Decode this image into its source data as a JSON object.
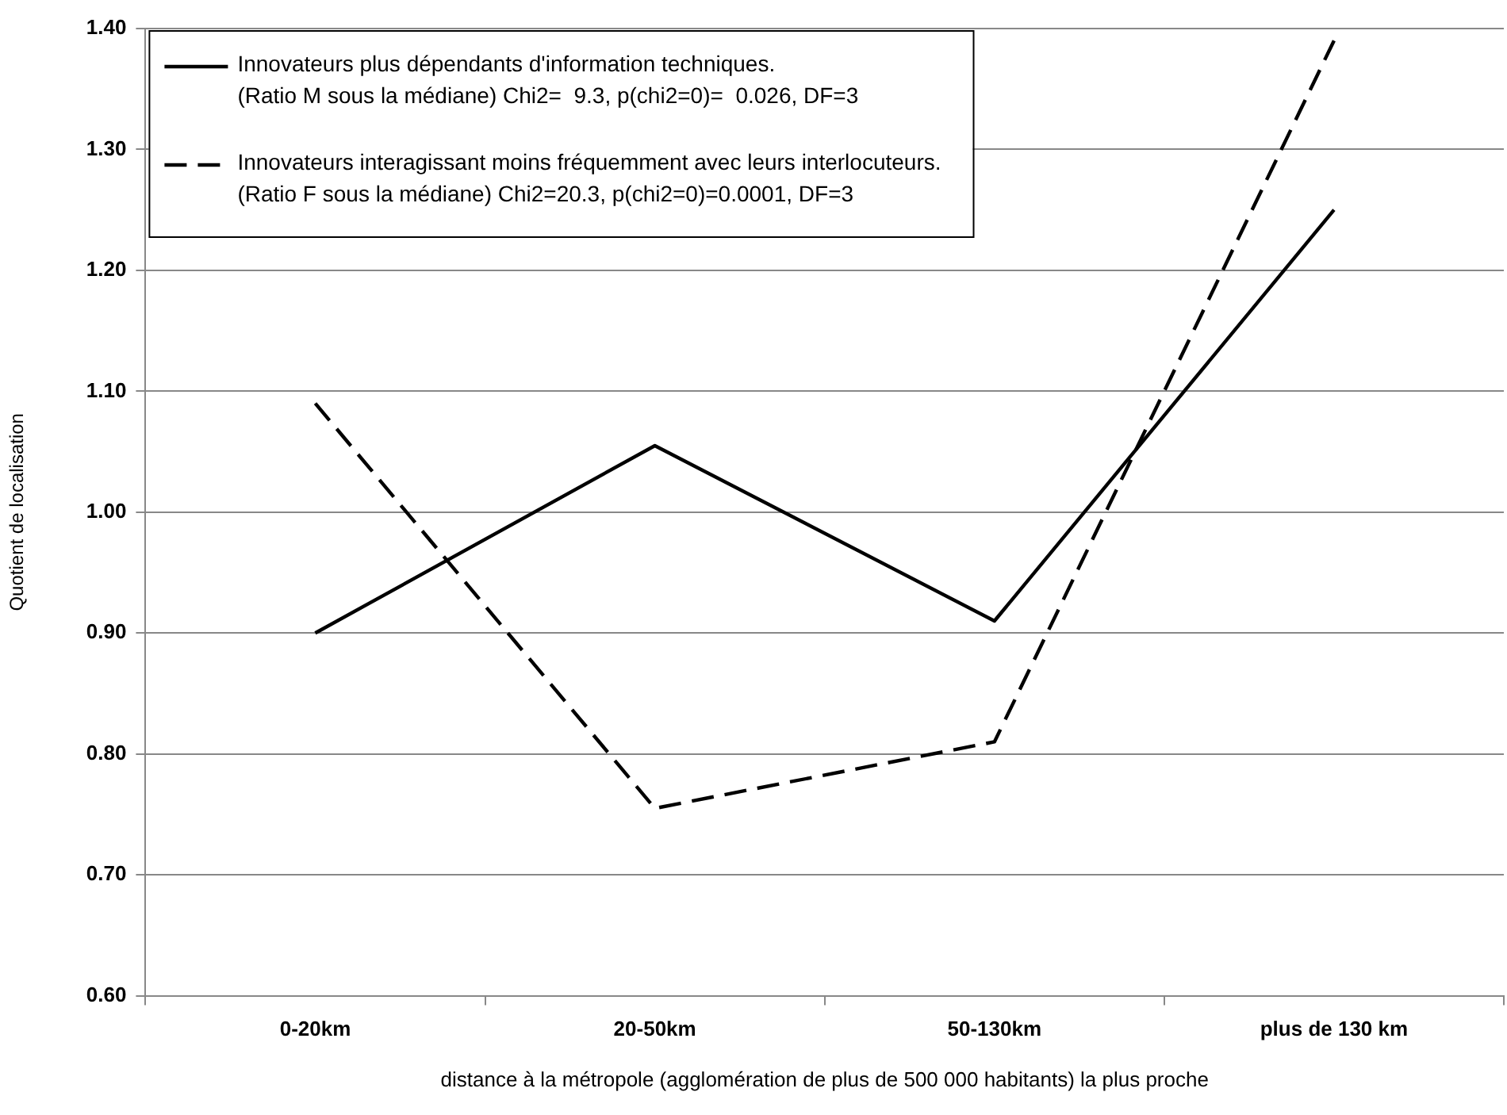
{
  "chart_data": {
    "type": "line",
    "xlabel": "distance à la métropole (agglomération de plus de 500 000 habitants) la plus proche",
    "ylabel": "Quotient de localisation",
    "categories": [
      "0-20km",
      "20-50km",
      "50-130km",
      "plus de 130 km"
    ],
    "series": [
      {
        "name": "Innovateurs plus dépendants d'information techniques.\n(Ratio M sous la médiane) Chi2=  9.3, p(chi2=0)=  0.026, DF=3",
        "color": "#000000",
        "line_style": "solid",
        "values": [
          0.9,
          1.055,
          0.91,
          1.25
        ]
      },
      {
        "name": "Innovateurs interagissant moins fréquemment avec leurs interlocuteurs.\n(Ratio F sous la médiane) Chi2=20.3, p(chi2=0)=0.0001, DF=3",
        "color": "#000000",
        "line_style": "dashed",
        "values": [
          1.09,
          0.755,
          0.81,
          1.39
        ]
      }
    ],
    "ylim": [
      0.6,
      1.4
    ],
    "yticks": [
      {
        "value": 0.6,
        "label": "0.60"
      },
      {
        "value": 0.7,
        "label": "0.70"
      },
      {
        "value": 0.8,
        "label": "0.80"
      },
      {
        "value": 0.9,
        "label": "0.90"
      },
      {
        "value": 1.0,
        "label": "1.00"
      },
      {
        "value": 1.1,
        "label": "1.10"
      },
      {
        "value": 1.2,
        "label": "1.20"
      },
      {
        "value": 1.3,
        "label": "1.30"
      },
      {
        "value": 1.4,
        "label": "1.40"
      }
    ],
    "grid": "y",
    "legend": "top left",
    "marker": "none"
  }
}
